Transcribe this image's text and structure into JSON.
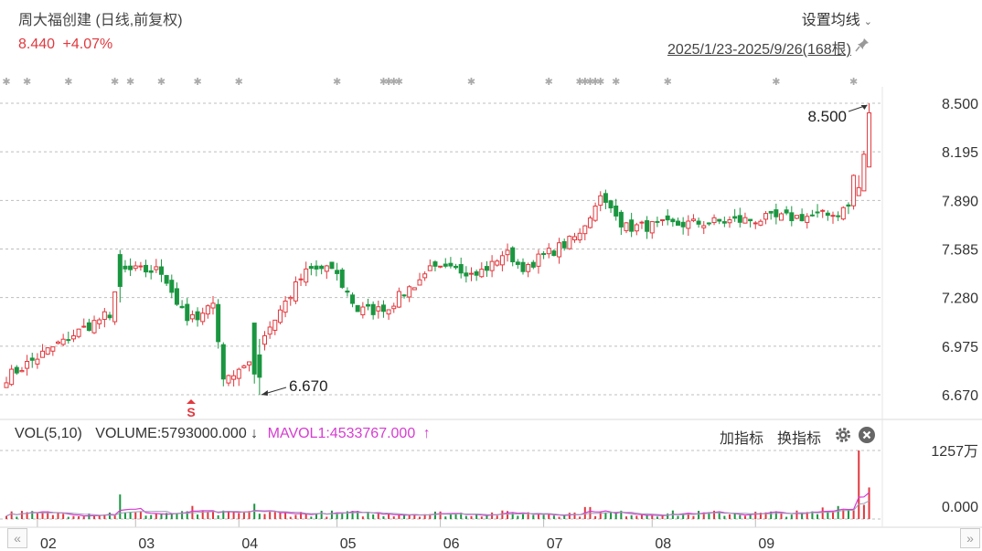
{
  "header": {
    "title": "周大福创建 (日线,前复权)",
    "price": "8.440",
    "change": "+4.07%",
    "setting_label": "设置均线",
    "date_range": "2025/1/23-2025/9/26(168根)"
  },
  "volume_panel": {
    "indicator": "VOL(5,10)",
    "volume_text": "VOLUME:5793000.000",
    "volume_arrow": "↓",
    "mavol_text": "MAVOL1:4533767.000",
    "mavol_arrow": "↑",
    "add_indicator": "加指标",
    "switch_indicator": "换指标",
    "axis_top": "1257万",
    "axis_bottom": "0.000"
  },
  "markers": {
    "high": "8.500",
    "low": "6.670",
    "s_signal": "S"
  },
  "colors": {
    "up": "#e0393e",
    "down": "#1a9640",
    "ma": "#d63cd0",
    "grid": "#bfbfbf"
  },
  "chart_data": {
    "type": "candlestick",
    "y_ticks": [
      "8.500",
      "8.195",
      "7.890",
      "7.585",
      "7.280",
      "6.975",
      "6.670"
    ],
    "ylim": [
      6.67,
      8.5
    ],
    "x_month_labels": [
      "02",
      "03",
      "04",
      "05",
      "06",
      "07",
      "08",
      "09"
    ],
    "month_start_index": [
      6,
      25,
      45,
      64,
      84,
      104,
      125,
      145
    ],
    "segments": [
      {
        "from": 0,
        "to": 12,
        "start": 6.78,
        "end": 7.03
      },
      {
        "from": 12,
        "to": 20,
        "start": 7.03,
        "end": 7.18
      },
      {
        "from": 20,
        "to": 22,
        "start": 7.18,
        "end": 7.45
      },
      {
        "from": 22,
        "to": 30,
        "start": 7.45,
        "end": 7.45
      },
      {
        "from": 30,
        "to": 35,
        "start": 7.45,
        "end": 7.12
      },
      {
        "from": 35,
        "to": 40,
        "start": 7.12,
        "end": 7.25
      },
      {
        "from": 40,
        "to": 42,
        "start": 7.25,
        "end": 6.8
      },
      {
        "from": 42,
        "to": 45,
        "start": 6.8,
        "end": 6.8
      },
      {
        "from": 45,
        "to": 58,
        "start": 6.8,
        "end": 7.45
      },
      {
        "from": 58,
        "to": 63,
        "start": 7.45,
        "end": 7.47
      },
      {
        "from": 63,
        "to": 68,
        "start": 7.47,
        "end": 7.2
      },
      {
        "from": 68,
        "to": 73,
        "start": 7.2,
        "end": 7.2
      },
      {
        "from": 73,
        "to": 82,
        "start": 7.2,
        "end": 7.45
      },
      {
        "from": 82,
        "to": 92,
        "start": 7.45,
        "end": 7.45
      },
      {
        "from": 92,
        "to": 97,
        "start": 7.45,
        "end": 7.55
      },
      {
        "from": 97,
        "to": 100,
        "start": 7.55,
        "end": 7.47
      },
      {
        "from": 100,
        "to": 110,
        "start": 7.47,
        "end": 7.65
      },
      {
        "from": 110,
        "to": 115,
        "start": 7.65,
        "end": 7.9
      },
      {
        "from": 115,
        "to": 120,
        "start": 7.9,
        "end": 7.72
      },
      {
        "from": 120,
        "to": 160,
        "start": 7.72,
        "end": 7.8
      },
      {
        "from": 160,
        "to": 163,
        "start": 7.8,
        "end": 7.85
      },
      {
        "from": 163,
        "to": 166,
        "start": 7.85,
        "end": 8.44
      }
    ],
    "count": 168,
    "last_close": 8.44,
    "high": 8.5,
    "low": 6.67,
    "volume_max": 12570000
  }
}
